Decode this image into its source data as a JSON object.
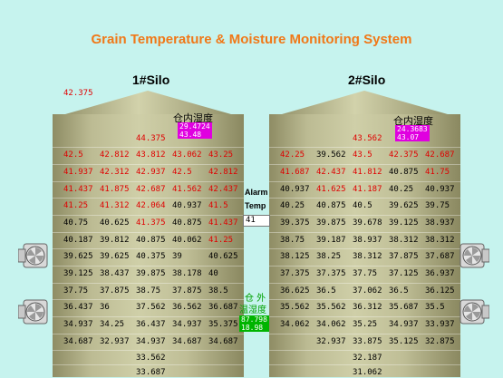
{
  "title": "Grain Temperature & Moisture Monitoring System",
  "silo1": {
    "name": "1#Silo",
    "top_outside_value": "42.375",
    "inner_label": "仓内湿度",
    "inner_box": [
      "29.4724",
      "43.48"
    ],
    "rows": [
      [
        {
          "v": "44.375",
          "c": "red"
        }
      ],
      [
        {
          "v": "42.5",
          "c": "red"
        },
        {
          "v": "42.812",
          "c": "red"
        },
        {
          "v": "43.812",
          "c": "red"
        },
        {
          "v": "43.062",
          "c": "red"
        },
        {
          "v": "43.25",
          "c": "red"
        }
      ],
      [
        {
          "v": "41.937",
          "c": "red"
        },
        {
          "v": "42.312",
          "c": "red"
        },
        {
          "v": "42.937",
          "c": "red"
        },
        {
          "v": "42.5",
          "c": "red"
        },
        {
          "v": "42.812",
          "c": "red"
        }
      ],
      [
        {
          "v": "41.437",
          "c": "red"
        },
        {
          "v": "41.875",
          "c": "red"
        },
        {
          "v": "42.687",
          "c": "red"
        },
        {
          "v": "41.562",
          "c": "red"
        },
        {
          "v": "42.437",
          "c": "red"
        }
      ],
      [
        {
          "v": "41.25",
          "c": "red"
        },
        {
          "v": "41.312",
          "c": "red"
        },
        {
          "v": "42.064",
          "c": "red"
        },
        {
          "v": "40.937",
          "c": "black"
        },
        {
          "v": "41.5",
          "c": "red"
        }
      ],
      [
        {
          "v": "40.75",
          "c": "black"
        },
        {
          "v": "40.625",
          "c": "black"
        },
        {
          "v": "41.375",
          "c": "red"
        },
        {
          "v": "40.875",
          "c": "black"
        },
        {
          "v": "41.437",
          "c": "red"
        }
      ],
      [
        {
          "v": "40.187",
          "c": "black"
        },
        {
          "v": "39.812",
          "c": "black"
        },
        {
          "v": "40.875",
          "c": "black"
        },
        {
          "v": "40.062",
          "c": "black"
        },
        {
          "v": "41.25",
          "c": "red"
        }
      ],
      [
        {
          "v": "39.625",
          "c": "black"
        },
        {
          "v": "39.625",
          "c": "black"
        },
        {
          "v": "40.375",
          "c": "black"
        },
        {
          "v": "39",
          "c": "black"
        },
        {
          "v": "40.625",
          "c": "black"
        }
      ],
      [
        {
          "v": "39.125",
          "c": "black"
        },
        {
          "v": "38.437",
          "c": "black"
        },
        {
          "v": "39.875",
          "c": "black"
        },
        {
          "v": "38.178",
          "c": "black"
        },
        {
          "v": "40",
          "c": "black"
        }
      ],
      [
        {
          "v": "37.75",
          "c": "black"
        },
        {
          "v": "37.875",
          "c": "black"
        },
        {
          "v": "38.75",
          "c": "black"
        },
        {
          "v": "37.875",
          "c": "black"
        },
        {
          "v": "38.5",
          "c": "black"
        }
      ],
      [
        {
          "v": "36.437",
          "c": "black"
        },
        {
          "v": "36",
          "c": "black"
        },
        {
          "v": "37.562",
          "c": "black"
        },
        {
          "v": "36.562",
          "c": "black"
        },
        {
          "v": "36.687",
          "c": "black"
        }
      ],
      [
        {
          "v": "34.937",
          "c": "black"
        },
        {
          "v": "34.25",
          "c": "black"
        },
        {
          "v": "36.437",
          "c": "black"
        },
        {
          "v": "34.937",
          "c": "black"
        },
        {
          "v": "35.375",
          "c": "black"
        }
      ],
      [
        {
          "v": "34.687",
          "c": "black"
        },
        {
          "v": "32.937",
          "c": "black"
        },
        {
          "v": "34.937",
          "c": "black"
        },
        {
          "v": "34.687",
          "c": "black"
        },
        {
          "v": "34.687",
          "c": "black"
        }
      ],
      [
        {
          "v": "33.562",
          "c": "black"
        }
      ],
      [
        {
          "v": "33.687",
          "c": "black"
        }
      ]
    ]
  },
  "silo2": {
    "name": "2#Silo",
    "inner_label": "仓内湿度",
    "inner_box": [
      "24.3683",
      "43.07"
    ],
    "rows": [
      [
        {
          "v": "43.562",
          "c": "red"
        }
      ],
      [
        {
          "v": "42.25",
          "c": "red"
        },
        {
          "v": "39.562",
          "c": "black"
        },
        {
          "v": "43.5",
          "c": "red"
        },
        {
          "v": "42.375",
          "c": "red"
        },
        {
          "v": "42.687",
          "c": "red"
        }
      ],
      [
        {
          "v": "41.687",
          "c": "red"
        },
        {
          "v": "42.437",
          "c": "red"
        },
        {
          "v": "41.812",
          "c": "red"
        },
        {
          "v": "40.875",
          "c": "black"
        },
        {
          "v": "41.75",
          "c": "red"
        }
      ],
      [
        {
          "v": "40.937",
          "c": "black"
        },
        {
          "v": "41.625",
          "c": "red"
        },
        {
          "v": "41.187",
          "c": "red"
        },
        {
          "v": "40.25",
          "c": "black"
        },
        {
          "v": "40.937",
          "c": "black"
        }
      ],
      [
        {
          "v": "40.25",
          "c": "black"
        },
        {
          "v": "40.875",
          "c": "black"
        },
        {
          "v": "40.5",
          "c": "black"
        },
        {
          "v": "39.625",
          "c": "black"
        },
        {
          "v": "39.75",
          "c": "black"
        }
      ],
      [
        {
          "v": "39.375",
          "c": "black"
        },
        {
          "v": "39.875",
          "c": "black"
        },
        {
          "v": "39.678",
          "c": "black"
        },
        {
          "v": "39.125",
          "c": "black"
        },
        {
          "v": "38.937",
          "c": "black"
        }
      ],
      [
        {
          "v": "38.75",
          "c": "black"
        },
        {
          "v": "39.187",
          "c": "black"
        },
        {
          "v": "38.937",
          "c": "black"
        },
        {
          "v": "38.312",
          "c": "black"
        },
        {
          "v": "38.312",
          "c": "black"
        }
      ],
      [
        {
          "v": "38.125",
          "c": "black"
        },
        {
          "v": "38.25",
          "c": "black"
        },
        {
          "v": "38.312",
          "c": "black"
        },
        {
          "v": "37.875",
          "c": "black"
        },
        {
          "v": "37.687",
          "c": "black"
        }
      ],
      [
        {
          "v": "37.375",
          "c": "black"
        },
        {
          "v": "37.375",
          "c": "black"
        },
        {
          "v": "37.75",
          "c": "black"
        },
        {
          "v": "37.125",
          "c": "black"
        },
        {
          "v": "36.937",
          "c": "black"
        }
      ],
      [
        {
          "v": "36.625",
          "c": "black"
        },
        {
          "v": "36.5",
          "c": "black"
        },
        {
          "v": "37.062",
          "c": "black"
        },
        {
          "v": "36.5",
          "c": "black"
        },
        {
          "v": "36.125",
          "c": "black"
        }
      ],
      [
        {
          "v": "35.562",
          "c": "black"
        },
        {
          "v": "35.562",
          "c": "black"
        },
        {
          "v": "36.312",
          "c": "black"
        },
        {
          "v": "35.687",
          "c": "black"
        },
        {
          "v": "35.5",
          "c": "black"
        }
      ],
      [
        {
          "v": "34.062",
          "c": "black"
        },
        {
          "v": "34.062",
          "c": "black"
        },
        {
          "v": "35.25",
          "c": "black"
        },
        {
          "v": "34.937",
          "c": "black"
        },
        {
          "v": "33.937",
          "c": "black"
        }
      ],
      [
        {
          "v": "",
          "c": "black"
        },
        {
          "v": "32.937",
          "c": "black"
        },
        {
          "v": "33.875",
          "c": "black"
        },
        {
          "v": "35.125",
          "c": "black"
        },
        {
          "v": "32.875",
          "c": "black"
        }
      ],
      [
        {
          "v": "32.187",
          "c": "black"
        }
      ],
      [
        {
          "v": "31.062",
          "c": "black"
        }
      ]
    ]
  },
  "alarm": {
    "label1": "Alarm",
    "label2": "Temp",
    "value": "41"
  },
  "outside": {
    "label1": "仓 外",
    "label2": "温湿度",
    "values": [
      "87.798",
      "18.98"
    ]
  },
  "icons": {
    "fan": "exhaust-fan-icon"
  },
  "colors": {
    "title": "#f07818",
    "alarm_red": "#e00000",
    "inner_box": "#e000e0",
    "outside_box": "#00b400",
    "background": "#c6f3ee"
  }
}
